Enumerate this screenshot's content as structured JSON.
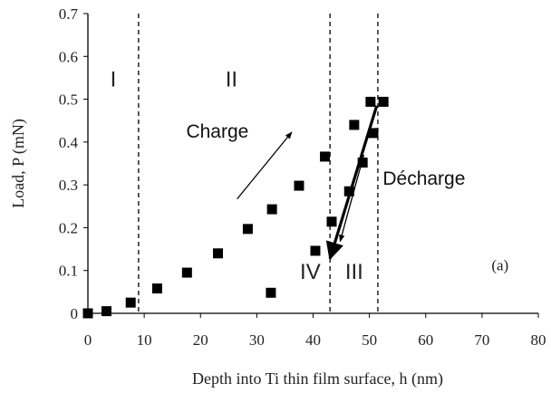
{
  "chart_data": {
    "type": "scatter",
    "title": "",
    "xlabel": "Depth into Ti thin film surface, h (nm)",
    "ylabel": "Load, P (mN)",
    "xlim": [
      0,
      80
    ],
    "ylim": [
      0,
      0.7
    ],
    "x_ticks": [
      "0",
      "10",
      "20",
      "30",
      "40",
      "50",
      "60",
      "70",
      "80"
    ],
    "y_ticks": [
      "0",
      "0.1",
      "0.2",
      "0.3",
      "0.4",
      "0.5",
      "0.6",
      "0.7"
    ],
    "grid": false,
    "series": [
      {
        "marker": "square",
        "color": "#000000",
        "points": [
          {
            "x": 0,
            "y": 0.0
          },
          {
            "x": 3.3,
            "y": 0.005
          },
          {
            "x": 7.6,
            "y": 0.025
          },
          {
            "x": 12.3,
            "y": 0.058
          },
          {
            "x": 17.6,
            "y": 0.095
          },
          {
            "x": 23.1,
            "y": 0.14
          },
          {
            "x": 28.4,
            "y": 0.197
          },
          {
            "x": 32.7,
            "y": 0.243
          },
          {
            "x": 37.5,
            "y": 0.298
          },
          {
            "x": 42.1,
            "y": 0.366
          },
          {
            "x": 47.3,
            "y": 0.44
          },
          {
            "x": 50.2,
            "y": 0.494
          },
          {
            "x": 52.5,
            "y": 0.494
          },
          {
            "x": 50.7,
            "y": 0.421
          },
          {
            "x": 48.8,
            "y": 0.352
          },
          {
            "x": 46.4,
            "y": 0.285
          },
          {
            "x": 43.3,
            "y": 0.214
          },
          {
            "x": 40.4,
            "y": 0.146
          },
          {
            "x": 32.5,
            "y": 0.048
          }
        ]
      }
    ],
    "vlines": [
      {
        "x": 9,
        "style": "dashed"
      },
      {
        "x": 43,
        "style": "dashed"
      },
      {
        "x": 51.5,
        "style": "dashed"
      }
    ],
    "regions": [
      {
        "label": "I",
        "x": 4.5,
        "y": 0.53
      },
      {
        "label": "II",
        "x": 25.5,
        "y": 0.53
      },
      {
        "label": "IV",
        "x": 39.5,
        "y": 0.08
      },
      {
        "label": "III",
        "x": 47.3,
        "y": 0.08
      }
    ],
    "annotations": [
      {
        "text": "Charge",
        "x": 23,
        "y": 0.41
      },
      {
        "text": "Décharge",
        "x": 59.7,
        "y": 0.3
      },
      {
        "text": "(a)",
        "x": 73.2,
        "y": 0.1
      }
    ],
    "arrows": [
      {
        "from": [
          26.5,
          0.267
        ],
        "to": [
          36.2,
          0.423
        ],
        "weight": "thin"
      },
      {
        "from": [
          51.3,
          0.485
        ],
        "to": [
          43.0,
          0.128
        ],
        "weight": "bold"
      },
      {
        "from": [
          49.0,
          0.37
        ],
        "to": [
          44.8,
          0.168
        ],
        "weight": "thin"
      }
    ]
  }
}
